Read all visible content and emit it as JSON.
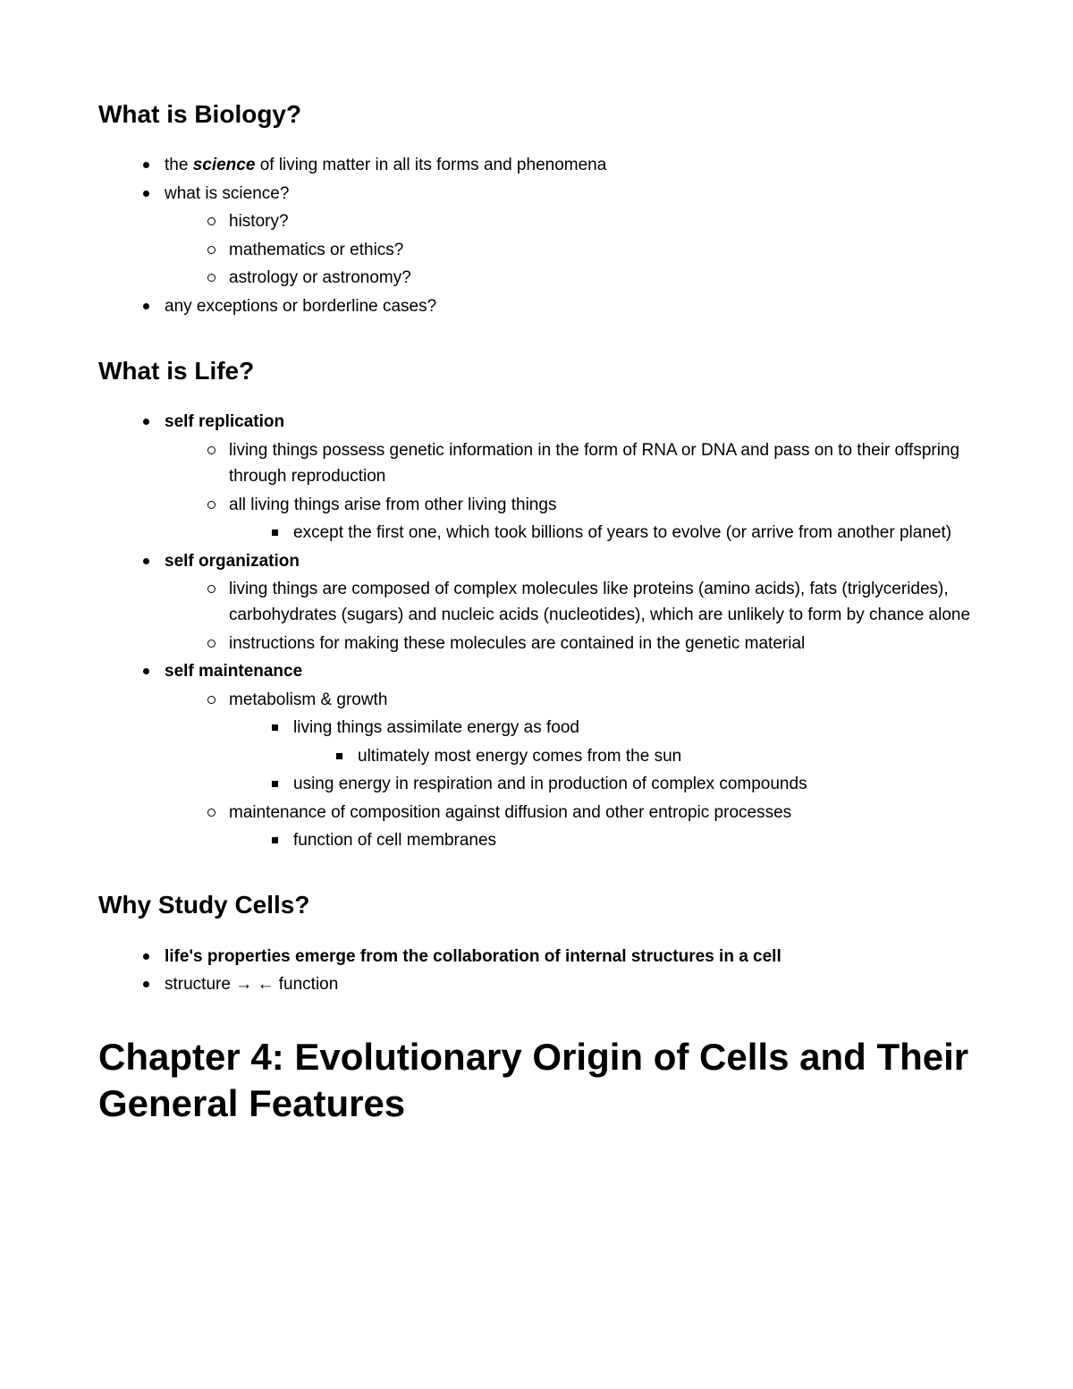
{
  "section1": {
    "heading": "What is Biology?",
    "b1_pre": "the ",
    "b1_bold": "science",
    "b1_post": " of living matter in all its forms and phenomena",
    "b2": "what is science?",
    "b2_sub1": "history?",
    "b2_sub2": "mathematics or ethics?",
    "b2_sub3": "astrology or astronomy?",
    "b3": "any exceptions or borderline cases?"
  },
  "section2": {
    "heading": "What is Life?",
    "b1": "self replication",
    "b1_s1": "living things possess genetic information in the form of RNA or DNA and pass on to their offspring through reproduction",
    "b1_s2": "all living things arise from other living things",
    "b1_s2_s1": "except the first one, which took billions of years to evolve (or arrive from another planet)",
    "b2": "self organization",
    "b2_s1": "living things are composed of complex molecules like proteins (amino acids), fats (triglycerides), carbohydrates (sugars) and nucleic acids (nucleotides), which are unlikely to form by chance alone",
    "b2_s2": "instructions for making these molecules are contained in the genetic material",
    "b3": "self maintenance",
    "b3_s1": "metabolism & growth",
    "b3_s1_s1": "living things assimilate energy as food",
    "b3_s1_s1_s1": "ultimately most energy comes from the sun",
    "b3_s1_s2": "using energy in respiration and in production of complex compounds",
    "b3_s2": "maintenance of composition against diffusion and other entropic processes",
    "b3_s2_s1": "function of cell membranes"
  },
  "section3": {
    "heading": "Why Study Cells?",
    "b1": "life's properties emerge from the collaboration of internal structures in a cell",
    "b2": "structure → ← function"
  },
  "chapter": {
    "title": "Chapter 4: Evolutionary Origin of Cells and Their General Features"
  }
}
